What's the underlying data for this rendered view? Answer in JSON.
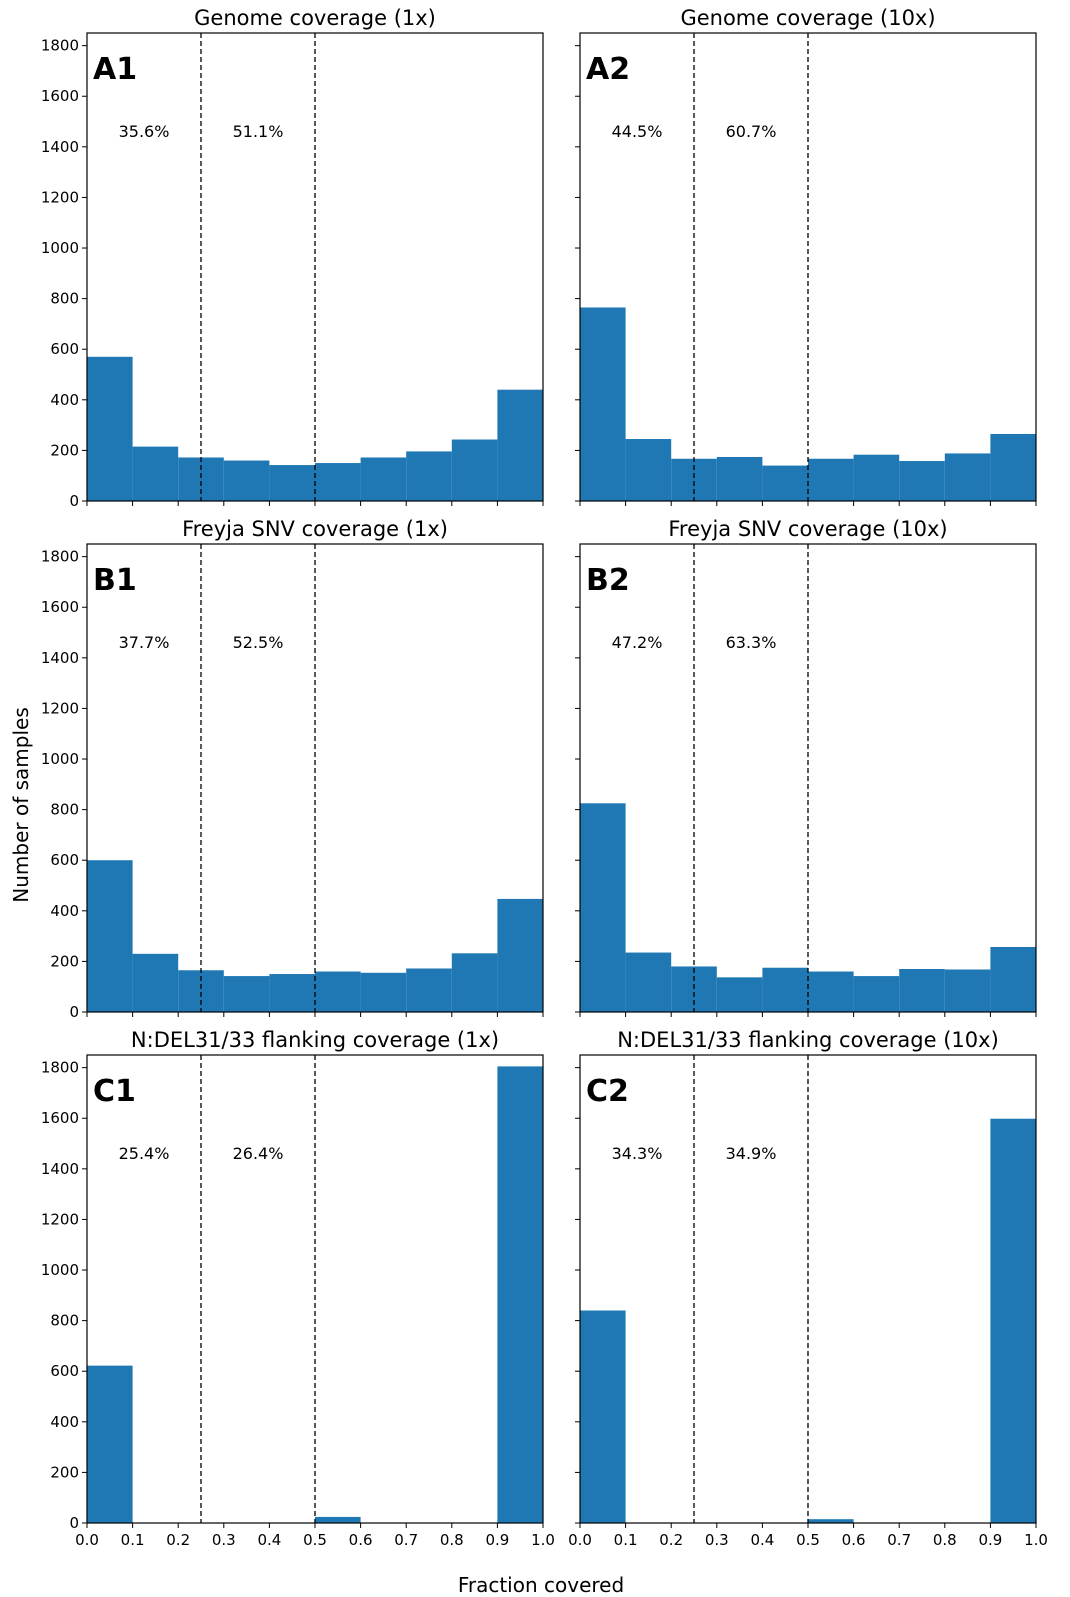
{
  "figure": {
    "ylabel": "Number of samples",
    "xlabel": "Fraction covered"
  },
  "colors": {
    "bar": "#1f77b4",
    "threshold_line": "#000000"
  },
  "chart_data": [
    {
      "type": "bar",
      "panel": "A1",
      "title": "Genome coverage (1x)",
      "bin_edges": [
        0.0,
        0.1,
        0.2,
        0.3,
        0.4,
        0.5,
        0.6,
        0.7,
        0.8,
        0.9,
        1.0
      ],
      "values": [
        570,
        215,
        172,
        160,
        142,
        150,
        172,
        196,
        243,
        440
      ],
      "thresholds": [
        0.25,
        0.5
      ],
      "annotations": [
        "35.6%",
        "51.1%"
      ],
      "xlim": [
        0,
        1
      ],
      "ylim": [
        0,
        1850
      ],
      "show_xticklabels": false
    },
    {
      "type": "bar",
      "panel": "A2",
      "title": "Genome coverage (10x)",
      "bin_edges": [
        0.0,
        0.1,
        0.2,
        0.3,
        0.4,
        0.5,
        0.6,
        0.7,
        0.8,
        0.9,
        1.0
      ],
      "values": [
        765,
        245,
        167,
        174,
        140,
        167,
        183,
        158,
        188,
        265
      ],
      "thresholds": [
        0.25,
        0.5
      ],
      "annotations": [
        "44.5%",
        "60.7%"
      ],
      "xlim": [
        0,
        1
      ],
      "ylim": [
        0,
        1850
      ],
      "show_xticklabels": false
    },
    {
      "type": "bar",
      "panel": "B1",
      "title": "Freyja SNV coverage (1x)",
      "bin_edges": [
        0.0,
        0.1,
        0.2,
        0.3,
        0.4,
        0.5,
        0.6,
        0.7,
        0.8,
        0.9,
        1.0
      ],
      "values": [
        600,
        230,
        165,
        142,
        150,
        160,
        155,
        172,
        232,
        447
      ],
      "thresholds": [
        0.25,
        0.5
      ],
      "annotations": [
        "37.7%",
        "52.5%"
      ],
      "xlim": [
        0,
        1
      ],
      "ylim": [
        0,
        1850
      ],
      "show_xticklabels": false
    },
    {
      "type": "bar",
      "panel": "B2",
      "title": "Freyja SNV coverage (10x)",
      "bin_edges": [
        0.0,
        0.1,
        0.2,
        0.3,
        0.4,
        0.5,
        0.6,
        0.7,
        0.8,
        0.9,
        1.0
      ],
      "values": [
        825,
        235,
        180,
        137,
        175,
        160,
        142,
        170,
        168,
        257
      ],
      "thresholds": [
        0.25,
        0.5
      ],
      "annotations": [
        "47.2%",
        "63.3%"
      ],
      "xlim": [
        0,
        1
      ],
      "ylim": [
        0,
        1850
      ],
      "show_xticklabels": false
    },
    {
      "type": "bar",
      "panel": "C1",
      "title": "N:DEL31/33 flanking coverage (1x)",
      "bin_edges": [
        0.0,
        0.1,
        0.2,
        0.3,
        0.4,
        0.5,
        0.6,
        0.7,
        0.8,
        0.9,
        1.0
      ],
      "values": [
        622,
        0,
        0,
        0,
        0,
        24,
        0,
        0,
        2,
        1805
      ],
      "thresholds": [
        0.25,
        0.5
      ],
      "annotations": [
        "25.4%",
        "26.4%"
      ],
      "xlim": [
        0,
        1
      ],
      "ylim": [
        0,
        1850
      ],
      "show_xticklabels": true
    },
    {
      "type": "bar",
      "panel": "C2",
      "title": "N:DEL31/33 flanking coverage (10x)",
      "bin_edges": [
        0.0,
        0.1,
        0.2,
        0.3,
        0.4,
        0.5,
        0.6,
        0.7,
        0.8,
        0.9,
        1.0
      ],
      "values": [
        840,
        0,
        0,
        0,
        0,
        15,
        0,
        0,
        0,
        1598
      ],
      "thresholds": [
        0.25,
        0.5
      ],
      "annotations": [
        "34.3%",
        "34.9%"
      ],
      "xlim": [
        0,
        1
      ],
      "ylim": [
        0,
        1850
      ],
      "show_xticklabels": true
    }
  ],
  "axes": {
    "yticks": [
      "0",
      "200",
      "400",
      "600",
      "800",
      "1000",
      "1200",
      "1400",
      "1600",
      "1800"
    ],
    "xticks": [
      "0.0",
      "0.1",
      "0.2",
      "0.3",
      "0.4",
      "0.5",
      "0.6",
      "0.7",
      "0.8",
      "0.9",
      "1.0"
    ]
  }
}
